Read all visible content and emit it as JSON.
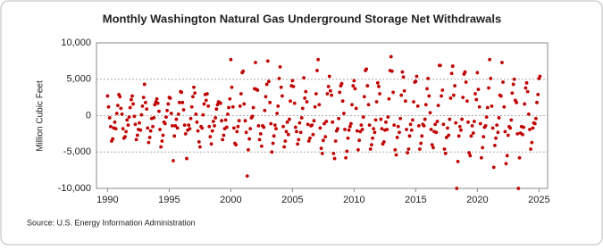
{
  "chart_data": {
    "type": "scatter",
    "title": "Monthly Washington Natural Gas Underground Storage Net Withdrawals",
    "y_label": "Million Cubic Feet",
    "source": "Source: U.S. Energy Information Administration",
    "color": "#c00000",
    "grid": true,
    "xlim": [
      1989.1,
      2025.7
    ],
    "xticks": [
      1990,
      1995,
      2000,
      2005,
      2010,
      2015,
      2020,
      2025
    ],
    "ylim": [
      -10000,
      10000
    ],
    "yticks": [
      {
        "value": -10000,
        "label": "-10,000"
      },
      {
        "value": -5000,
        "label": "-5,000"
      },
      0,
      {
        "value": 5000,
        "label": "5,000"
      },
      {
        "value": 10000,
        "label": "10,000"
      }
    ],
    "x": [
      1990,
      1990.08,
      1990.17,
      1990.25,
      1990.33,
      1990.42,
      1990.5,
      1990.58,
      1990.67,
      1990.75,
      1990.83,
      1990.92,
      1991,
      1991.08,
      1991.17,
      1991.25,
      1991.33,
      1991.42,
      1991.5,
      1991.58,
      1991.67,
      1991.75,
      1991.83,
      1991.92,
      1992,
      1992.08,
      1992.17,
      1992.25,
      1992.33,
      1992.42,
      1992.5,
      1992.58,
      1992.67,
      1992.75,
      1992.83,
      1992.92,
      1993,
      1993.08,
      1993.17,
      1993.25,
      1993.33,
      1993.42,
      1993.5,
      1993.58,
      1993.67,
      1993.75,
      1993.83,
      1993.92,
      1994,
      1994.08,
      1994.17,
      1994.25,
      1994.33,
      1994.42,
      1994.5,
      1994.58,
      1994.67,
      1994.75,
      1994.83,
      1994.92,
      1995,
      1995.08,
      1995.17,
      1995.25,
      1995.33,
      1995.42,
      1995.5,
      1995.58,
      1995.67,
      1995.75,
      1995.83,
      1995.92,
      1996,
      1996.08,
      1996.17,
      1996.25,
      1996.33,
      1996.42,
      1996.5,
      1996.58,
      1996.67,
      1996.75,
      1996.83,
      1996.92,
      1997,
      1997.08,
      1997.17,
      1997.25,
      1997.33,
      1997.42,
      1997.5,
      1997.58,
      1997.67,
      1997.75,
      1997.83,
      1997.92,
      1998,
      1998.08,
      1998.17,
      1998.25,
      1998.33,
      1998.42,
      1998.5,
      1998.58,
      1998.67,
      1998.75,
      1998.83,
      1998.92,
      1999,
      1999.08,
      1999.17,
      1999.25,
      1999.33,
      1999.42,
      1999.5,
      1999.58,
      1999.67,
      1999.75,
      1999.83,
      1999.92,
      2000,
      2000.08,
      2000.17,
      2000.25,
      2000.33,
      2000.42,
      2000.5,
      2000.58,
      2000.67,
      2000.75,
      2000.83,
      2000.92,
      2001,
      2001.08,
      2001.17,
      2001.25,
      2001.33,
      2001.42,
      2001.5,
      2001.58,
      2001.67,
      2001.75,
      2001.83,
      2001.92,
      2002,
      2002.08,
      2002.17,
      2002.25,
      2002.33,
      2002.42,
      2002.5,
      2002.58,
      2002.67,
      2002.75,
      2002.83,
      2002.92,
      2003,
      2003.08,
      2003.17,
      2003.25,
      2003.33,
      2003.42,
      2003.5,
      2003.58,
      2003.67,
      2003.75,
      2003.83,
      2003.92,
      2004,
      2004.08,
      2004.17,
      2004.25,
      2004.33,
      2004.42,
      2004.5,
      2004.58,
      2004.67,
      2004.75,
      2004.83,
      2004.92,
      2005,
      2005.08,
      2005.17,
      2005.25,
      2005.33,
      2005.42,
      2005.5,
      2005.58,
      2005.67,
      2005.75,
      2005.83,
      2005.92,
      2006,
      2006.08,
      2006.17,
      2006.25,
      2006.33,
      2006.42,
      2006.5,
      2006.58,
      2006.67,
      2006.75,
      2006.83,
      2006.92,
      2007,
      2007.08,
      2007.17,
      2007.25,
      2007.33,
      2007.42,
      2007.5,
      2007.58,
      2007.67,
      2007.75,
      2007.83,
      2007.92,
      2008,
      2008.08,
      2008.17,
      2008.25,
      2008.33,
      2008.42,
      2008.5,
      2008.58,
      2008.67,
      2008.75,
      2008.83,
      2008.92,
      2009,
      2009.08,
      2009.17,
      2009.25,
      2009.33,
      2009.42,
      2009.5,
      2009.58,
      2009.67,
      2009.75,
      2009.83,
      2009.92,
      2010,
      2010.08,
      2010.17,
      2010.25,
      2010.33,
      2010.42,
      2010.5,
      2010.58,
      2010.67,
      2010.75,
      2010.83,
      2010.92,
      2011,
      2011.08,
      2011.17,
      2011.25,
      2011.33,
      2011.42,
      2011.5,
      2011.58,
      2011.67,
      2011.75,
      2011.83,
      2011.92,
      2012,
      2012.08,
      2012.17,
      2012.25,
      2012.33,
      2012.42,
      2012.5,
      2012.58,
      2012.67,
      2012.75,
      2012.83,
      2012.92,
      2013,
      2013.08,
      2013.17,
      2013.25,
      2013.33,
      2013.42,
      2013.5,
      2013.58,
      2013.67,
      2013.75,
      2013.83,
      2013.92,
      2014,
      2014.08,
      2014.17,
      2014.25,
      2014.33,
      2014.42,
      2014.5,
      2014.58,
      2014.67,
      2014.75,
      2014.83,
      2014.92,
      2015,
      2015.08,
      2015.17,
      2015.25,
      2015.33,
      2015.42,
      2015.5,
      2015.58,
      2015.67,
      2015.75,
      2015.83,
      2015.92,
      2016,
      2016.08,
      2016.17,
      2016.25,
      2016.33,
      2016.42,
      2016.5,
      2016.58,
      2016.67,
      2016.75,
      2016.83,
      2016.92,
      2017,
      2017.08,
      2017.17,
      2017.25,
      2017.33,
      2017.42,
      2017.5,
      2017.58,
      2017.67,
      2017.75,
      2017.83,
      2017.92,
      2018,
      2018.08,
      2018.17,
      2018.25,
      2018.33,
      2018.42,
      2018.5,
      2018.58,
      2018.67,
      2018.75,
      2018.83,
      2018.92,
      2019,
      2019.08,
      2019.17,
      2019.25,
      2019.33,
      2019.42,
      2019.5,
      2019.58,
      2019.67,
      2019.75,
      2019.83,
      2019.92,
      2020,
      2020.08,
      2020.17,
      2020.25,
      2020.33,
      2020.42,
      2020.5,
      2020.58,
      2020.67,
      2020.75,
      2020.83,
      2020.92,
      2021,
      2021.08,
      2021.17,
      2021.25,
      2021.33,
      2021.42,
      2021.5,
      2021.58,
      2021.67,
      2021.75,
      2021.83,
      2021.92,
      2022,
      2022.08,
      2022.17,
      2022.25,
      2022.33,
      2022.42,
      2022.5,
      2022.58,
      2022.67,
      2022.75,
      2022.83,
      2022.92,
      2023,
      2023.08,
      2023.17,
      2023.25,
      2023.33,
      2023.42,
      2023.5,
      2023.58,
      2023.67,
      2023.75,
      2023.83,
      2023.92,
      2024,
      2024.08,
      2024.17,
      2024.25,
      2024.33,
      2024.42,
      2024.5,
      2024.58,
      2024.67,
      2024.75,
      2024.83,
      2024.92,
      2025,
      2025.08
    ],
    "values": [
      2700,
      1200,
      -300,
      -1500,
      -3500,
      -3200,
      -1700,
      -900,
      -1800,
      300,
      1400,
      2900,
      2600,
      1000,
      200,
      -1800,
      -3100,
      -2900,
      -2200,
      -600,
      -1300,
      -200,
      1100,
      2200,
      2700,
      1600,
      -100,
      -1200,
      -3300,
      -2700,
      -1900,
      -1000,
      -2000,
      100,
      1300,
      2500,
      4300,
      1800,
      900,
      -1700,
      -3700,
      -3000,
      -2100,
      -400,
      -1500,
      -300,
      1500,
      1900,
      2300,
      1700,
      600,
      -1900,
      -4300,
      -3500,
      -2700,
      -900,
      -1100,
      -200,
      700,
      1600,
      2500,
      2400,
      300,
      -1400,
      -6200,
      -2800,
      -1400,
      -500,
      -1700,
      200,
      1800,
      3300,
      3200,
      1800,
      800,
      -1300,
      -2500,
      -5900,
      -2000,
      -1300,
      -1800,
      -400,
      1200,
      2600,
      3900,
      3100,
      200,
      -900,
      -2100,
      -3600,
      -4300,
      -1500,
      -1700,
      100,
      1600,
      2900,
      2100,
      3000,
      1300,
      -1500,
      -2900,
      -3900,
      -2100,
      -800,
      -1400,
      -300,
      900,
      1500,
      1900,
      1800,
      1700,
      -700,
      -3300,
      -2700,
      -1800,
      -600,
      -1600,
      200,
      1100,
      2300,
      7700,
      3900,
      1200,
      -1700,
      -3800,
      -4000,
      -2200,
      -1500,
      -700,
      1300,
      3000,
      5900,
      6100,
      1600,
      -700,
      -2300,
      -8300,
      -4700,
      -3200,
      -1800,
      -300,
      -100,
      1100,
      3700,
      7300,
      3600,
      3500,
      -1400,
      -3300,
      -2500,
      -4200,
      -1400,
      -1600,
      700,
      2600,
      4300,
      7500,
      4700,
      1800,
      -1100,
      -5000,
      -3800,
      -2800,
      -1300,
      -1800,
      300,
      1300,
      5100,
      6700,
      3900,
      2700,
      -1500,
      -4300,
      -3500,
      -2200,
      -900,
      -2600,
      -500,
      2000,
      4100,
      4800,
      4000,
      1700,
      -1600,
      -2200,
      -3900,
      -3300,
      -1000,
      -2300,
      -300,
      1000,
      5200,
      2400,
      3300,
      1900,
      -1200,
      -3500,
      -3100,
      -1400,
      -1300,
      -2600,
      -700,
      1200,
      3000,
      6200,
      7700,
      1500,
      -1700,
      -4500,
      -5200,
      -3400,
      -1100,
      -2900,
      -800,
      3000,
      4000,
      5400,
      3400,
      2800,
      -900,
      -5200,
      -5900,
      -3500,
      -2100,
      -1800,
      -400,
      3200,
      4100,
      4400,
      2000,
      300,
      -1900,
      -5800,
      -4900,
      -3100,
      -2000,
      -1500,
      -1100,
      1500,
      4100,
      4800,
      3700,
      1000,
      -2100,
      -4700,
      -3400,
      -2200,
      -1300,
      -1900,
      -200,
      2600,
      6200,
      6400,
      4100,
      1500,
      -1300,
      -4600,
      -4000,
      -3100,
      -1800,
      -2300,
      -600,
      1900,
      4500,
      4000,
      3000,
      -500,
      -1800,
      -3900,
      -3600,
      -2000,
      -900,
      -1900,
      -200,
      2300,
      6200,
      8100,
      6100,
      3200,
      -1300,
      -4700,
      -5400,
      -3000,
      -1500,
      -2300,
      -400,
      2800,
      6000,
      5300,
      3400,
      2000,
      -1900,
      -5100,
      -4600,
      -2800,
      -1200,
      -2000,
      -600,
      1900,
      4600,
      4700,
      5400,
      1300,
      -1400,
      -4600,
      -3800,
      -2800,
      -1200,
      -1400,
      -500,
      1500,
      3700,
      5100,
      2700,
      400,
      -1900,
      -4000,
      -4400,
      -2200,
      -1200,
      -2300,
      -800,
      1400,
      6900,
      6900,
      2700,
      3500,
      -1200,
      -4600,
      -5200,
      -3000,
      -1700,
      -2700,
      -500,
      2400,
      5800,
      6800,
      2800,
      4100,
      -1000,
      -10000,
      -6300,
      -2800,
      -1500,
      -2000,
      -500,
      2500,
      5700,
      6000,
      4600,
      2000,
      -900,
      -5100,
      -5500,
      -2800,
      -1400,
      -2400,
      -800,
      3000,
      2200,
      5900,
      3600,
      1200,
      -1100,
      -5800,
      -4400,
      -2900,
      -1600,
      -1400,
      -200,
      1100,
      3800,
      7700,
      5100,
      1300,
      -1700,
      -7100,
      -4100,
      -3100,
      -1300,
      -2300,
      -300,
      2800,
      2700,
      7300,
      4600,
      1200,
      -2200,
      -6600,
      -5500,
      -2700,
      -1500,
      -1700,
      -600,
      3100,
      4300,
      5000,
      2100,
      1800,
      -2500,
      -10000,
      -5800,
      -2400,
      -1500,
      -2600,
      -1600,
      1600,
      3800,
      4500,
      3300,
      200,
      -1900,
      -4600,
      -3700,
      -1700,
      -1000,
      -1100,
      -400,
      1800,
      2900,
      5100,
      5400
    ]
  }
}
